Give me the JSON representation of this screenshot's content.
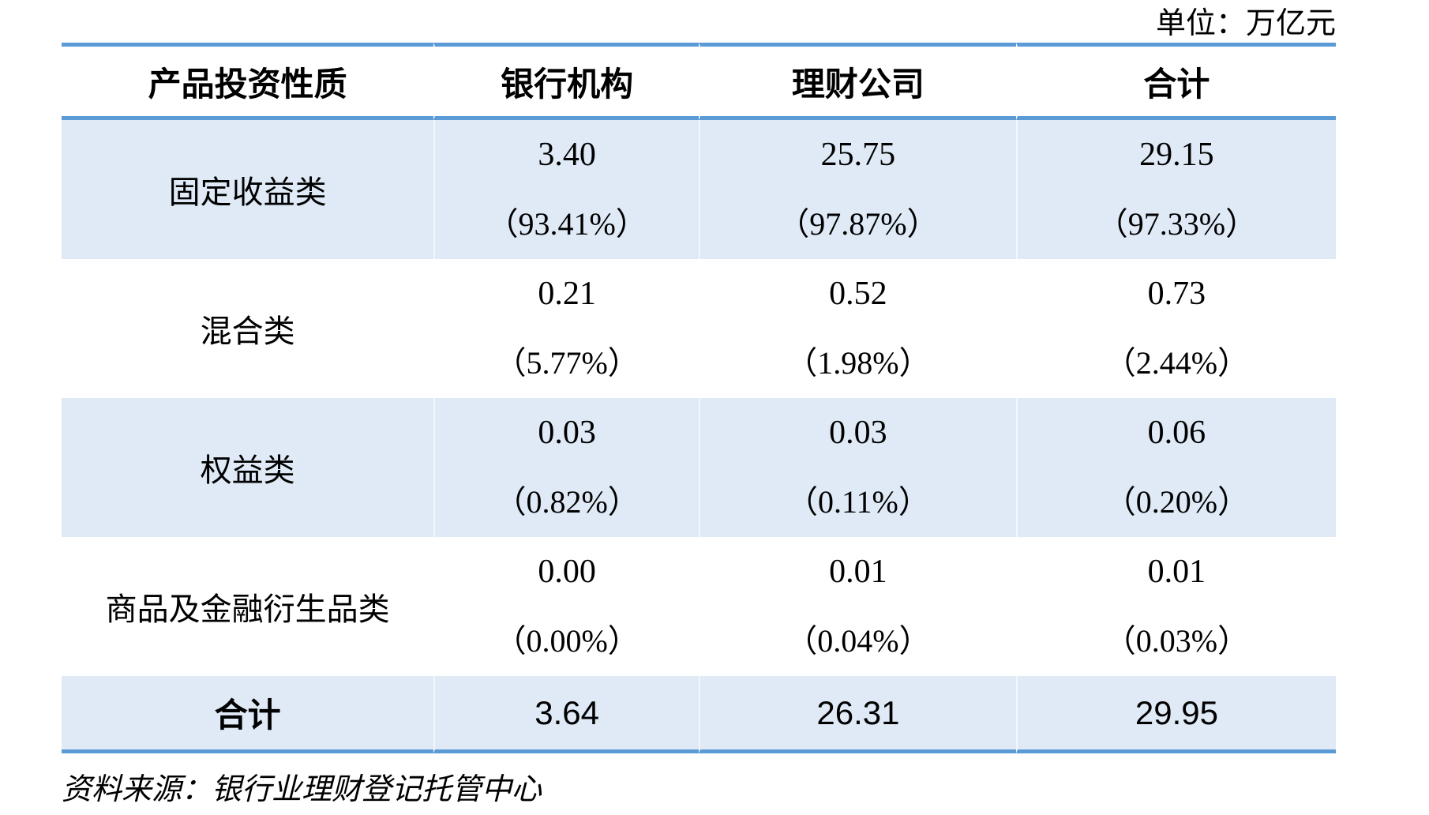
{
  "unit_label": "单位：万亿元",
  "source_note": "资料来源：银行业理财登记托管中心",
  "colors": {
    "accent_line": "#5b9bd5",
    "row_fill": "#dfeaf6",
    "text": "#000000"
  },
  "table": {
    "columns": [
      "产品投资性质",
      "银行机构",
      "理财公司",
      "合计"
    ],
    "rows": [
      {
        "label": "固定收益类",
        "cells": [
          {
            "value": "3.40",
            "pct": "（93.41%）"
          },
          {
            "value": "25.75",
            "pct": "（97.87%）"
          },
          {
            "value": "29.15",
            "pct": "（97.33%）"
          }
        ]
      },
      {
        "label": "混合类",
        "cells": [
          {
            "value": "0.21",
            "pct": "（5.77%）"
          },
          {
            "value": "0.52",
            "pct": "（1.98%）"
          },
          {
            "value": "0.73",
            "pct": "（2.44%）"
          }
        ]
      },
      {
        "label": "权益类",
        "cells": [
          {
            "value": "0.03",
            "pct": "（0.82%）"
          },
          {
            "value": "0.03",
            "pct": "（0.11%）"
          },
          {
            "value": "0.06",
            "pct": "（0.20%）"
          }
        ]
      },
      {
        "label": "商品及金融衍生品类",
        "cells": [
          {
            "value": "0.00",
            "pct": "（0.00%）"
          },
          {
            "value": "0.01",
            "pct": "（0.04%）"
          },
          {
            "value": "0.01",
            "pct": "（0.03%）"
          }
        ]
      }
    ],
    "total_row": {
      "label": "合计",
      "values": [
        "3.64",
        "26.31",
        "29.95"
      ]
    }
  }
}
